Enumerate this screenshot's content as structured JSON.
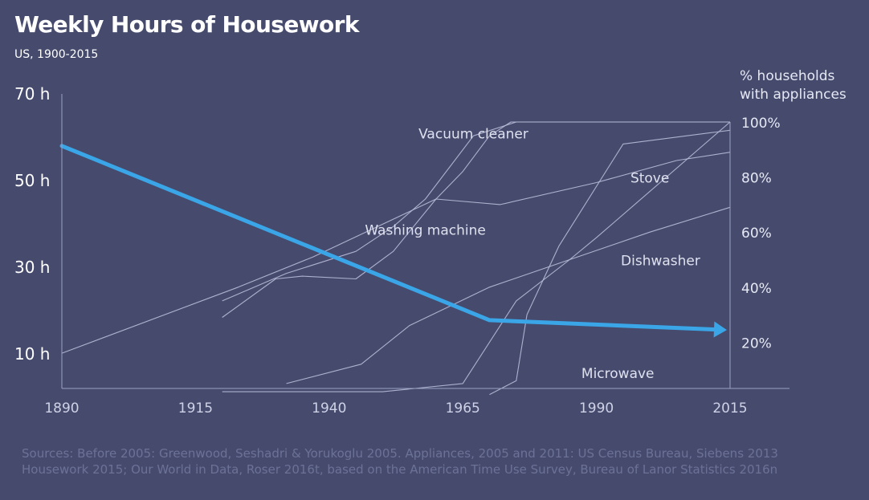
{
  "title": "Weekly Hours of Housework",
  "subtitle": "US, 1900-2015",
  "right_axis_title": [
    "% households",
    "with appliances"
  ],
  "sources": [
    "Sources: Before 2005: Greenwood, Seshadri & Yorukoglu 2005. Appliances, 2005 and 2011: US Census Bureau, Siebens 2013",
    "Housework 2015; Our World in Data, Roser 2016t, based on the American Time Use Survey, Bureau of Lanor Statistics 2016n"
  ],
  "colors": {
    "background": "#464b6e",
    "housework": "#3aa6e8",
    "appliance_lines": "#b9bdd8",
    "axis": "#9aa0c0",
    "sources_text": "#6c7196"
  },
  "chart_data": {
    "type": "line",
    "xlim": [
      1890,
      2015
    ],
    "x_ticks": [
      1890,
      1915,
      1940,
      1965,
      1990,
      2015
    ],
    "x_tick_labels": [
      "1890",
      "1915",
      "1940",
      "1965",
      "1990",
      "2015"
    ],
    "left_axis": {
      "ylim": [
        0,
        70
      ],
      "ticks": [
        10,
        30,
        50,
        70
      ],
      "tick_labels": [
        "10 h",
        "30 h",
        "50 h",
        "70 h"
      ]
    },
    "right_axis": {
      "ylim": [
        0,
        100
      ],
      "ticks": [
        20,
        40,
        60,
        80,
        100
      ],
      "tick_labels": [
        "20%",
        "40%",
        "60%",
        "80%",
        "100%"
      ]
    },
    "housework_series": {
      "axis": "left",
      "points": [
        [
          1890,
          58
        ],
        [
          1970,
          17.8
        ],
        [
          2015,
          15.5
        ]
      ]
    },
    "appliance_series": [
      {
        "name": "Vacuum cleaner",
        "axis": "right",
        "label_pos": [
          1967,
          94
        ],
        "points": [
          [
            1920,
            35
          ],
          [
            1932,
            45
          ],
          [
            1945,
            53
          ],
          [
            1952,
            62
          ],
          [
            1958,
            72
          ],
          [
            1967,
            95
          ],
          [
            1975,
            100
          ],
          [
            2015,
            100
          ]
        ]
      },
      {
        "name": "Washing machine",
        "axis": "right",
        "label_pos": [
          1958,
          59
        ],
        "points": [
          [
            1920,
            29
          ],
          [
            1930,
            43
          ],
          [
            1935,
            44
          ],
          [
            1945,
            43
          ],
          [
            1952,
            53
          ],
          [
            1960,
            72
          ],
          [
            1965,
            82
          ],
          [
            1970,
            95
          ],
          [
            1974,
            100
          ],
          [
            2015,
            100
          ]
        ]
      },
      {
        "name": "Stove",
        "axis": "right",
        "label_pos": [
          2000,
          78
        ],
        "points": [
          [
            1890,
            16
          ],
          [
            1923,
            40
          ],
          [
            1937,
            51
          ],
          [
            1960,
            72
          ],
          [
            1972,
            70
          ],
          [
            1990,
            78
          ],
          [
            2005,
            86
          ],
          [
            2015,
            89
          ]
        ]
      },
      {
        "name": "Dishwasher",
        "axis": "right",
        "label_pos": [
          2002,
          48
        ],
        "points": [
          [
            1932,
            5
          ],
          [
            1946,
            12
          ],
          [
            1955,
            26
          ],
          [
            1970,
            40
          ],
          [
            1985,
            50
          ],
          [
            2000,
            60
          ],
          [
            2015,
            69
          ]
        ]
      },
      {
        "name": "Microwave",
        "axis": "right",
        "label_pos": [
          1994,
          7
        ],
        "points": [
          [
            1970,
            1
          ],
          [
            1975,
            6
          ],
          [
            1977,
            30
          ],
          [
            1983,
            55
          ],
          [
            1995,
            92
          ],
          [
            2015,
            97
          ],
          [
            2015,
            100
          ]
        ]
      },
      {
        "name": "",
        "axis": "right",
        "points": [
          [
            1920,
            2
          ],
          [
            1950,
            2
          ],
          [
            1965,
            5
          ],
          [
            1975,
            35
          ],
          [
            1985,
            50
          ],
          [
            1990,
            58
          ],
          [
            2015,
            100
          ]
        ]
      }
    ]
  }
}
